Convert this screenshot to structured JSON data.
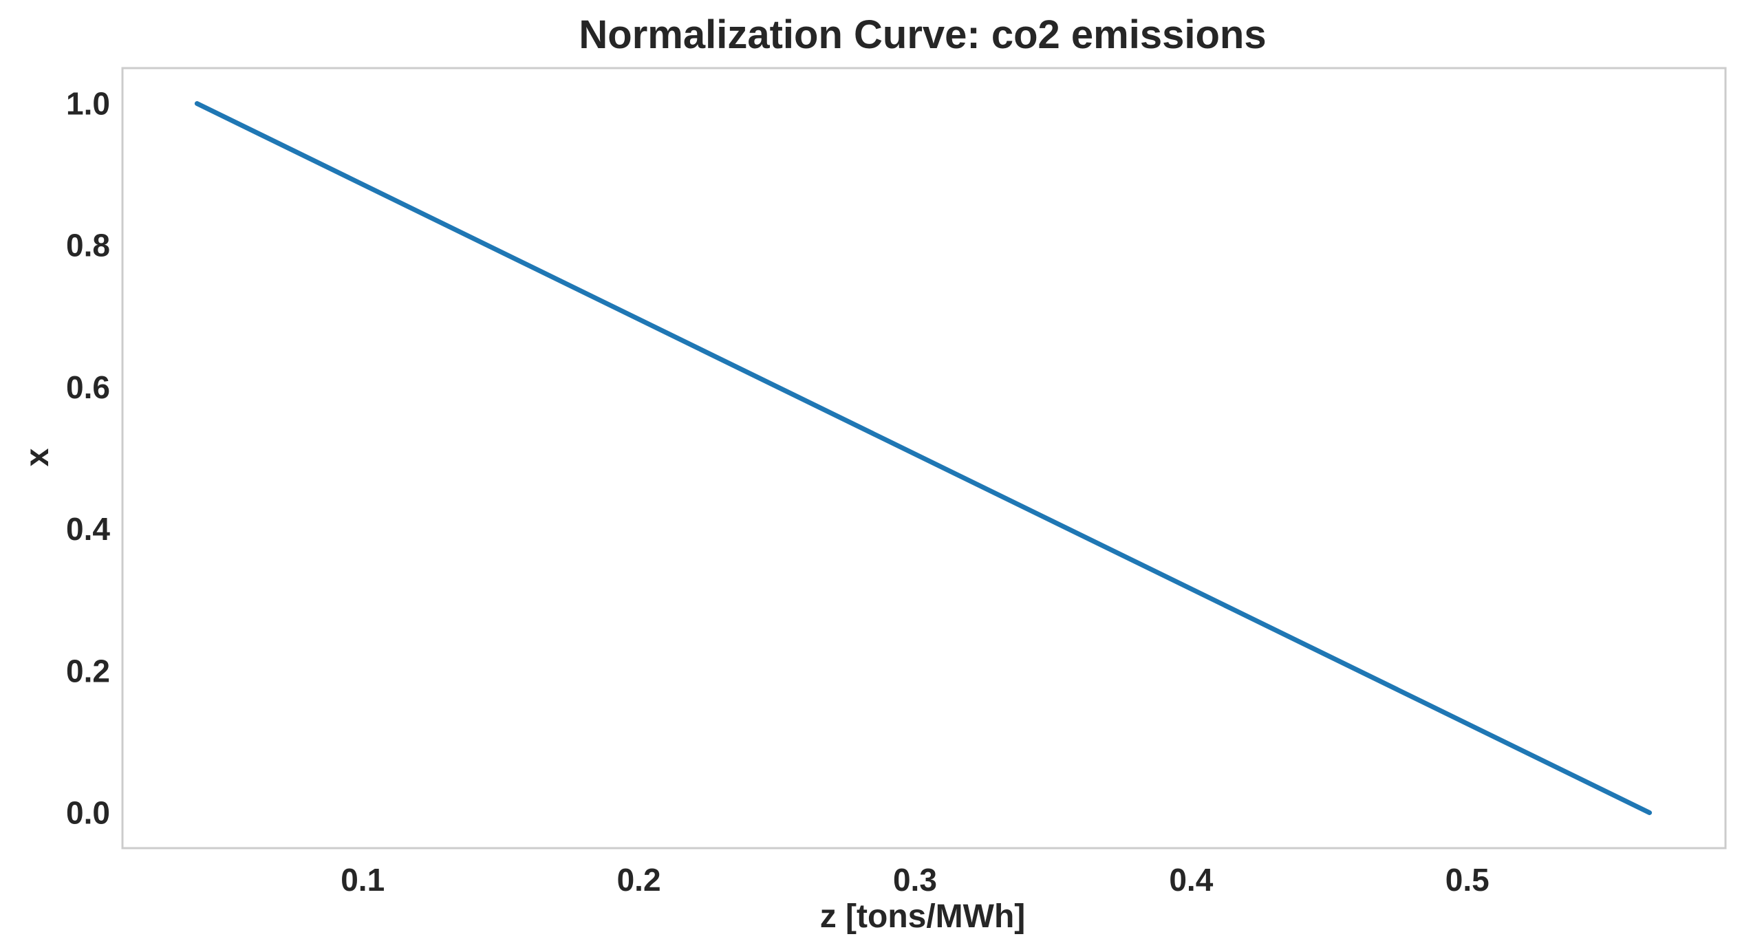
{
  "chart_data": {
    "type": "line",
    "title": "Normalization Curve: co2 emissions",
    "xlabel": "z [tons/MWh]",
    "ylabel": "x",
    "xlim": [
      0.013,
      0.5935
    ],
    "ylim": [
      -0.05,
      1.05
    ],
    "xticks": [
      0.1,
      0.2,
      0.3,
      0.4,
      0.5
    ],
    "xtick_labels": [
      "0.1",
      "0.2",
      "0.3",
      "0.4",
      "0.5"
    ],
    "yticks": [
      0.0,
      0.2,
      0.4,
      0.6,
      0.8,
      1.0
    ],
    "ytick_labels": [
      "0.0",
      "0.2",
      "0.4",
      "0.6",
      "0.8",
      "1.0"
    ],
    "grid": false,
    "series": [
      {
        "color": "#1f77b4",
        "x": [
          0.04,
          0.566
        ],
        "y": [
          1.0,
          0.0
        ]
      }
    ]
  }
}
